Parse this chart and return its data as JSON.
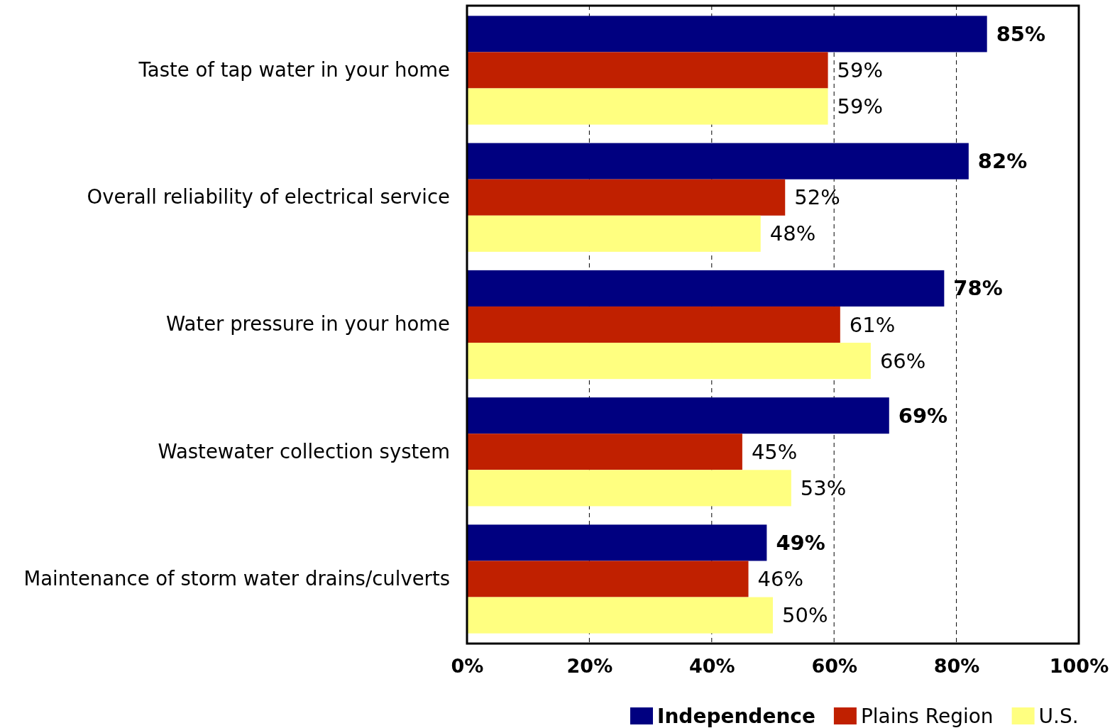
{
  "chart_data": {
    "type": "bar",
    "orientation": "horizontal",
    "categories": [
      "Taste of tap water in your home",
      "Overall reliability of electrical service",
      "Water pressure in your home",
      "Wastewater collection system",
      "Maintenance of storm water drains/culverts"
    ],
    "series": [
      {
        "name": "Independence",
        "color": "#000080",
        "values": [
          85,
          82,
          78,
          69,
          49
        ],
        "value_labels": [
          "85%",
          "82%",
          "78%",
          "69%",
          "49%"
        ]
      },
      {
        "name": "Plains Region",
        "color": "#c02000",
        "values": [
          59,
          52,
          61,
          45,
          46
        ],
        "value_labels": [
          "59%",
          "52%",
          "61%",
          "45%",
          "46%"
        ]
      },
      {
        "name": "U.S.",
        "color": "#ffff80",
        "values": [
          59,
          48,
          66,
          53,
          50
        ],
        "value_labels": [
          "59%",
          "48%",
          "66%",
          "53%",
          "50%"
        ]
      }
    ],
    "xlim": [
      0,
      100
    ],
    "xticks": [
      {
        "value": 0,
        "label": "0%"
      },
      {
        "value": 20,
        "label": "20%"
      },
      {
        "value": 40,
        "label": "40%"
      },
      {
        "value": 60,
        "label": "60%"
      },
      {
        "value": 80,
        "label": "80%"
      },
      {
        "value": 100,
        "label": "100%"
      }
    ],
    "grid": "x",
    "legend": "bottom"
  }
}
